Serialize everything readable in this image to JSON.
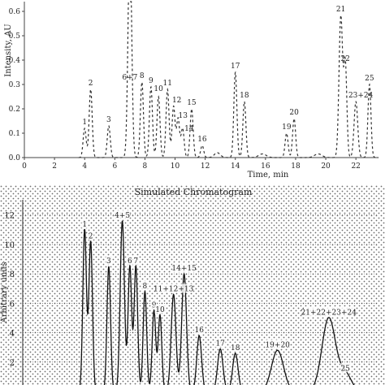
{
  "figure": {
    "panels": [
      {
        "id": "measured",
        "type": "line",
        "title": "",
        "xlabel": "Time, min",
        "ylabel": "Intensity, AU",
        "xlim": [
          0,
          23.5
        ],
        "ylim": [
          0,
          0.62
        ],
        "x_ticks": [
          0,
          2,
          4,
          6,
          8,
          10,
          12,
          14,
          16,
          18,
          20,
          22
        ],
        "y_ticks": [
          0.0,
          0.1,
          0.2,
          0.3,
          0.4,
          0.5,
          0.6
        ],
        "y_tick_labels": [
          "0.0",
          "0.1",
          "0.2",
          "0.3",
          "0.4",
          "0.5",
          "0.6"
        ],
        "grid": false,
        "line_style": "dashed",
        "peaks": [
          {
            "label": "1",
            "x": 4.0,
            "y": 0.12,
            "w": 0.1
          },
          {
            "label": "2",
            "x": 4.4,
            "y": 0.28,
            "w": 0.1
          },
          {
            "label": "3",
            "x": 5.6,
            "y": 0.13,
            "w": 0.1
          },
          {
            "label": "6+7",
            "x": 7.0,
            "y": 0.9,
            "w": 0.12
          },
          {
            "label": "8",
            "x": 7.8,
            "y": 0.31,
            "w": 0.1
          },
          {
            "label": "9",
            "x": 8.4,
            "y": 0.29,
            "w": 0.1
          },
          {
            "label": "10",
            "x": 8.9,
            "y": 0.25,
            "w": 0.1
          },
          {
            "label": "11",
            "x": 9.5,
            "y": 0.28,
            "w": 0.1
          },
          {
            "label": "12",
            "x": 9.9,
            "y": 0.21,
            "w": 0.1
          },
          {
            "label": "13",
            "x": 10.2,
            "y": 0.16,
            "w": 0.1
          },
          {
            "label": "14",
            "x": 10.5,
            "y": 0.12,
            "w": 0.1
          },
          {
            "label": "15",
            "x": 11.1,
            "y": 0.2,
            "w": 0.1
          },
          {
            "label": "16",
            "x": 11.8,
            "y": 0.05,
            "w": 0.1
          },
          {
            "label": "17",
            "x": 14.0,
            "y": 0.35,
            "w": 0.1
          },
          {
            "label": "18",
            "x": 14.6,
            "y": 0.23,
            "w": 0.1
          },
          {
            "label": "19",
            "x": 17.4,
            "y": 0.1,
            "w": 0.1
          },
          {
            "label": "20",
            "x": 17.9,
            "y": 0.16,
            "w": 0.1
          },
          {
            "label": "21",
            "x": 21.0,
            "y": 0.58,
            "w": 0.12
          },
          {
            "label": "22",
            "x": 21.3,
            "y": 0.38,
            "w": 0.1
          },
          {
            "label": "23+24",
            "x": 22.0,
            "y": 0.23,
            "w": 0.12
          },
          {
            "label": "25",
            "x": 22.9,
            "y": 0.3,
            "w": 0.1
          }
        ],
        "baseline_bumps": [
          {
            "x": 12.8,
            "y": 0.02,
            "w": 0.2
          },
          {
            "x": 15.8,
            "y": 0.015,
            "w": 0.25
          },
          {
            "x": 19.5,
            "y": 0.015,
            "w": 0.25
          }
        ]
      },
      {
        "id": "simulated",
        "type": "line",
        "title": "Simulated Chromatogram",
        "xlabel": "",
        "ylabel": "Arbitrary units",
        "xlim": [
          0,
          23.5
        ],
        "ylim": [
          0,
          12.7
        ],
        "y_ticks": [
          2,
          4,
          6,
          8,
          10,
          12
        ],
        "y_tick_labels": [
          "2",
          "4",
          "6",
          "8",
          "10",
          "12"
        ],
        "grid": true,
        "grid_style": "dotted",
        "line_style": "solid",
        "peaks": [
          {
            "label": "1",
            "x": 4.0,
            "y": 11.0,
            "w": 0.12
          },
          {
            "label": "2",
            "x": 4.4,
            "y": 10.2,
            "w": 0.12
          },
          {
            "label": "3",
            "x": 5.6,
            "y": 8.5,
            "w": 0.12
          },
          {
            "label": "4+5",
            "x": 6.5,
            "y": 11.6,
            "w": 0.14
          },
          {
            "label": "6",
            "x": 7.0,
            "y": 8.5,
            "w": 0.12
          },
          {
            "label": "7",
            "x": 7.4,
            "y": 8.5,
            "w": 0.12
          },
          {
            "label": "8",
            "x": 8.0,
            "y": 6.8,
            "w": 0.12
          },
          {
            "label": "9",
            "x": 8.6,
            "y": 5.5,
            "w": 0.12
          },
          {
            "label": "10",
            "x": 9.0,
            "y": 5.2,
            "w": 0.12
          },
          {
            "label": "11+12+13",
            "x": 9.9,
            "y": 6.6,
            "w": 0.16
          },
          {
            "label": "14+15",
            "x": 10.6,
            "y": 8.0,
            "w": 0.16
          },
          {
            "label": "16",
            "x": 11.6,
            "y": 3.8,
            "w": 0.16
          },
          {
            "label": "17",
            "x": 13.0,
            "y": 2.9,
            "w": 0.18
          },
          {
            "label": "18",
            "x": 14.0,
            "y": 2.6,
            "w": 0.18
          },
          {
            "label": "19+20",
            "x": 16.8,
            "y": 2.8,
            "w": 0.4
          },
          {
            "label": "21+22+23+24",
            "x": 20.2,
            "y": 5.0,
            "w": 0.45
          },
          {
            "label": "25",
            "x": 21.3,
            "y": 1.2,
            "w": 0.4
          }
        ]
      }
    ]
  }
}
